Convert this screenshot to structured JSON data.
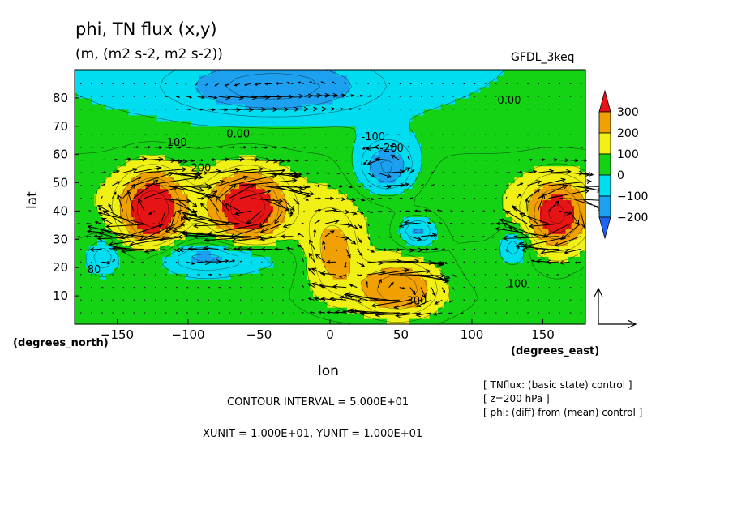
{
  "chart_data": {
    "type": "heatmap",
    "title": "phi, TN flux (x,y)",
    "subtitle": "(m, (m2 s-2, m2 s-2))",
    "dataset": "GFDL_3keq",
    "xlabel": "lon",
    "ylabel": "lat",
    "x_units": "(degrees_east)",
    "y_units": "(degrees_north)",
    "xlim": [
      -180,
      180
    ],
    "ylim": [
      0,
      90
    ],
    "x_ticks": [
      -150,
      -100,
      -50,
      0,
      50,
      100,
      150
    ],
    "x_tick_labels": [
      "−150",
      "−100",
      "−50",
      "0",
      "50",
      "100",
      "150"
    ],
    "y_ticks": [
      10,
      20,
      30,
      40,
      50,
      60,
      70,
      80
    ],
    "y_tick_labels": [
      "10",
      "20",
      "30",
      "40",
      "50",
      "60",
      "70",
      "80"
    ],
    "colorbar": {
      "levels": [
        -300,
        -200,
        -100,
        0,
        100,
        200,
        300,
        400
      ],
      "colors": [
        "#1e64f0",
        "#1ea0f0",
        "#00dcf0",
        "#14d214",
        "#f0f014",
        "#f0a000",
        "#e61414"
      ],
      "tick_values": [
        -200,
        -100,
        0,
        100,
        200,
        300
      ],
      "tick_labels": [
        "−200",
        "−100",
        "0",
        "100",
        "200",
        "300"
      ]
    },
    "field_centers": [
      {
        "lon": -125,
        "lat": 40,
        "amp": 340,
        "rlon": 22,
        "rlat": 14
      },
      {
        "lon": -58,
        "lat": 41,
        "amp": 330,
        "rlon": 26,
        "rlat": 13
      },
      {
        "lon": 160,
        "lat": 38,
        "amp": 290,
        "rlon": 22,
        "rlat": 13
      },
      {
        "lon": 48,
        "lat": 13,
        "amp": 260,
        "rlon": 30,
        "rlat": 11
      },
      {
        "lon": 2,
        "lat": 25,
        "amp": 200,
        "rlon": 20,
        "rlat": 15
      },
      {
        "lon": 40,
        "lat": 55,
        "amp": -230,
        "rlon": 22,
        "rlat": 10
      },
      {
        "lon": 62,
        "lat": 33,
        "amp": -180,
        "rlon": 14,
        "rlat": 6
      },
      {
        "lon": -85,
        "lat": 24,
        "amp": -170,
        "rlon": 45,
        "rlat": 6
      },
      {
        "lon": -40,
        "lat": 84,
        "amp": -190,
        "rlon": 70,
        "rlat": 10
      },
      {
        "lon": 130,
        "lat": 28,
        "amp": -140,
        "rlon": 10,
        "rlat": 6
      },
      {
        "lon": -160,
        "lat": 24,
        "amp": -120,
        "rlon": 10,
        "rlat": 6
      }
    ],
    "contour_labels": [
      {
        "text": "0.00",
        "lon": 118,
        "lat": 78
      },
      {
        "text": "0.00",
        "lon": -73,
        "lat": 66
      },
      {
        "text": "100",
        "lon": -115,
        "lat": 63
      },
      {
        "text": "200",
        "lon": -98,
        "lat": 54
      },
      {
        "text": "-100",
        "lon": 22,
        "lat": 65
      },
      {
        "text": "-200",
        "lon": 35,
        "lat": 61
      },
      {
        "text": "300",
        "lon": 54,
        "lat": 7
      },
      {
        "text": "100",
        "lon": 125,
        "lat": 13
      },
      {
        "text": "80",
        "lon": -171,
        "lat": 18
      }
    ],
    "contour_interval": "CONTOUR INTERVAL = 5.000E+01",
    "unit_vector": "XUNIT = 1.000E+01, YUNIT = 1.000E+01",
    "annotations": [
      "[ TNflux: (basic state) control ]",
      "[ z=200 hPa ]",
      "[ phi: (diff) from (mean) control ]"
    ]
  }
}
